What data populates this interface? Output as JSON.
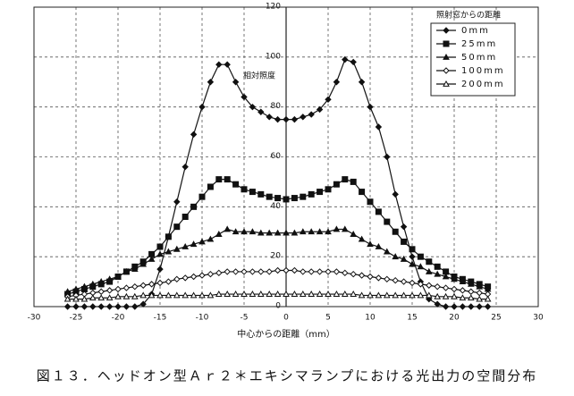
{
  "chart_data": {
    "type": "line",
    "caption": "図１３．ヘッドオン型Ａｒ２＊エキシマランプにおける光出力の空間分布",
    "y_label": "相対照度",
    "x_label": "中心からの距離（mm）",
    "legend_title": "照射窓からの距離",
    "xlim": [
      -30,
      30
    ],
    "ylim": [
      0,
      120
    ],
    "xticks": [
      -30,
      -25,
      -20,
      -15,
      -10,
      -5,
      0,
      5,
      10,
      15,
      20,
      25,
      30
    ],
    "yticks": [
      0,
      20,
      40,
      60,
      80,
      100,
      120
    ],
    "grid": true,
    "legend": "upper right",
    "x": [
      -26,
      -25,
      -24,
      -23,
      -22,
      -21,
      -20,
      -19,
      -18,
      -17,
      -16,
      -15,
      -14,
      -13,
      -12,
      -11,
      -10,
      -9,
      -8,
      -7,
      -6,
      -5,
      -4,
      -3,
      -2,
      -1,
      0,
      1,
      2,
      3,
      4,
      5,
      6,
      7,
      8,
      9,
      10,
      11,
      12,
      13,
      14,
      15,
      16,
      17,
      18,
      19,
      20,
      21,
      22,
      23,
      24
    ],
    "series": [
      {
        "name": "0mm",
        "color": "#111111",
        "marker": "diamond",
        "values": [
          0,
          0,
          0,
          0,
          0,
          0,
          0,
          0,
          0,
          1,
          5,
          15,
          28,
          42,
          56,
          69,
          80,
          90,
          97,
          97,
          90,
          84,
          80,
          78,
          76,
          75,
          75,
          75,
          76,
          77,
          79,
          83,
          90,
          99,
          98,
          90,
          80,
          72,
          60,
          45,
          32,
          20,
          10,
          3,
          1,
          0,
          0,
          0,
          0,
          0,
          0
        ]
      },
      {
        "name": "25mm",
        "color": "#111111",
        "marker": "square",
        "values": [
          5,
          6,
          7,
          8,
          9,
          10,
          12,
          14,
          16,
          18,
          21,
          24,
          28,
          32,
          36,
          40,
          44,
          48,
          51,
          51,
          49,
          47,
          46,
          45,
          44,
          43.5,
          43,
          43.5,
          44,
          45,
          46,
          47,
          49,
          51,
          50,
          46,
          42,
          38,
          34,
          30,
          26,
          23,
          20,
          18,
          16,
          14,
          12,
          11,
          10,
          9,
          8
        ]
      },
      {
        "name": "50mm",
        "color": "#111111",
        "marker": "triangle",
        "values": [
          6,
          7,
          8,
          9,
          10,
          11,
          12,
          14,
          15,
          17,
          19,
          21,
          22,
          23,
          24,
          25,
          26,
          27,
          29,
          31,
          30,
          30,
          30,
          29.5,
          29.5,
          29.5,
          29.5,
          29.5,
          30,
          30,
          30,
          30,
          31,
          31,
          29,
          27,
          25,
          24,
          22,
          20,
          19,
          17,
          16,
          14,
          13,
          12,
          11,
          10,
          9,
          8,
          7
        ]
      },
      {
        "name": "100mm",
        "color": "#111111",
        "marker": "diamond-open",
        "values": [
          4,
          4.5,
          5,
          5.5,
          6,
          6.5,
          7,
          7.5,
          8,
          8.5,
          9,
          9.5,
          10,
          11,
          11.5,
          12,
          12.5,
          13,
          13.5,
          14,
          14,
          14,
          14,
          14,
          14,
          14.5,
          14.5,
          14.5,
          14,
          14,
          14,
          14,
          14,
          13.5,
          13,
          12.5,
          12,
          11.5,
          11,
          10.5,
          10,
          9.5,
          9,
          8.5,
          8,
          7.5,
          7,
          6.5,
          6,
          5.5,
          5
        ]
      },
      {
        "name": "200mm",
        "color": "#111111",
        "marker": "triangle-open",
        "values": [
          3,
          3,
          3,
          3.5,
          3.5,
          3.5,
          4,
          4,
          4,
          4.5,
          4.5,
          4.5,
          4.5,
          4.5,
          4.5,
          4.5,
          4.5,
          4.5,
          5,
          5,
          5,
          5,
          5,
          5,
          5,
          5,
          5,
          5,
          5,
          5,
          5,
          5,
          5,
          5,
          5,
          4.5,
          4.5,
          4.5,
          4.5,
          4.5,
          4.5,
          4.5,
          4.5,
          4.5,
          4,
          4,
          4,
          3.5,
          3.5,
          3,
          3
        ]
      }
    ]
  }
}
